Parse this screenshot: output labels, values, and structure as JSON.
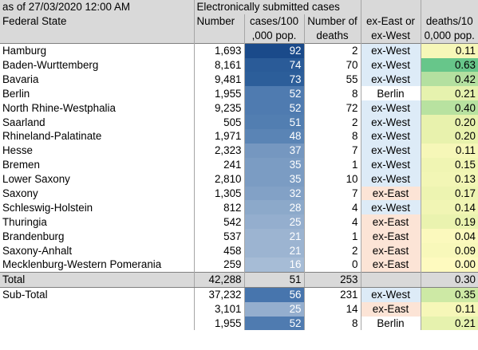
{
  "header": {
    "date_label": "as of 27/03/2020 12:00 AM",
    "group_label": "Electronically submitted cases",
    "col_state": "Federal State",
    "col_number": "Number",
    "col_cases_line1": "cases/100",
    "col_cases_line2": ",000 pop.",
    "col_deaths_line1": "Number of",
    "col_deaths_line2": "deaths",
    "col_region_line1": "ex-East or",
    "col_region_line2": "ex-West",
    "col_dr_line1": "deaths/10",
    "col_dr_line2": "0,000 pop."
  },
  "rows": [
    {
      "state": "Hamburg",
      "number": "1,693",
      "cases": "92",
      "deaths": "2",
      "region": "ex-West",
      "dr": "0.11",
      "cases_color": "#1a4a8a",
      "region_color": "#ddebf7",
      "dr_color": "#f6f7b8"
    },
    {
      "state": "Baden-Wurttemberg",
      "number": "8,161",
      "cases": "74",
      "deaths": "70",
      "region": "ex-West",
      "dr": "0.63",
      "cases_color": "#2a5b98",
      "region_color": "#ddebf7",
      "dr_color": "#67c68a"
    },
    {
      "state": "Bavaria",
      "number": "9,481",
      "cases": "73",
      "deaths": "55",
      "region": "ex-West",
      "dr": "0.42",
      "cases_color": "#2c5e9a",
      "region_color": "#ddebf7",
      "dr_color": "#b4e0a0"
    },
    {
      "state": "Berlin",
      "number": "1,955",
      "cases": "52",
      "deaths": "8",
      "region": "Berlin",
      "dr": "0.21",
      "cases_color": "#4f7bb0",
      "region_color": "#ffffff",
      "dr_color": "#e6f2ae"
    },
    {
      "state": "North Rhine-Westphalia",
      "number": "9,235",
      "cases": "52",
      "deaths": "72",
      "region": "ex-West",
      "dr": "0.40",
      "cases_color": "#4f7bb0",
      "region_color": "#ddebf7",
      "dr_color": "#b8e2a0"
    },
    {
      "state": "Saarland",
      "number": "505",
      "cases": "51",
      "deaths": "2",
      "region": "ex-West",
      "dr": "0.20",
      "cases_color": "#527eb1",
      "region_color": "#ddebf7",
      "dr_color": "#e8f2ad"
    },
    {
      "state": "Rhineland-Palatinate",
      "number": "1,971",
      "cases": "48",
      "deaths": "8",
      "region": "ex-West",
      "dr": "0.20",
      "cases_color": "#5a84b5",
      "region_color": "#ddebf7",
      "dr_color": "#e8f2ad"
    },
    {
      "state": "Hesse",
      "number": "2,323",
      "cases": "37",
      "deaths": "7",
      "region": "ex-West",
      "dr": "0.11",
      "cases_color": "#7597c0",
      "region_color": "#ddebf7",
      "dr_color": "#f6f7b8"
    },
    {
      "state": "Bremen",
      "number": "241",
      "cases": "35",
      "deaths": "1",
      "region": "ex-West",
      "dr": "0.15",
      "cases_color": "#7b9cc3",
      "region_color": "#ddebf7",
      "dr_color": "#f0f5b3"
    },
    {
      "state": "Lower Saxony",
      "number": "2,810",
      "cases": "35",
      "deaths": "10",
      "region": "ex-West",
      "dr": "0.13",
      "cases_color": "#7b9cc3",
      "region_color": "#ddebf7",
      "dr_color": "#f2f6b5"
    },
    {
      "state": "Saxony",
      "number": "1,305",
      "cases": "32",
      "deaths": "7",
      "region": "ex-East",
      "dr": "0.17",
      "cases_color": "#82a1c6",
      "region_color": "#fce4d6",
      "dr_color": "#edf4b1"
    },
    {
      "state": "Schleswig-Holstein",
      "number": "812",
      "cases": "28",
      "deaths": "4",
      "region": "ex-West",
      "dr": "0.14",
      "cases_color": "#8ca9ca",
      "region_color": "#ddebf7",
      "dr_color": "#f1f5b4"
    },
    {
      "state": "Thuringia",
      "number": "542",
      "cases": "25",
      "deaths": "4",
      "region": "ex-East",
      "dr": "0.19",
      "cases_color": "#94aece",
      "region_color": "#fce4d6",
      "dr_color": "#eaf3af"
    },
    {
      "state": "Brandenburg",
      "number": "537",
      "cases": "21",
      "deaths": "1",
      "region": "ex-East",
      "dr": "0.04",
      "cases_color": "#9cb4d1",
      "region_color": "#fce4d6",
      "dr_color": "#fbf9bd"
    },
    {
      "state": "Saxony-Anhalt",
      "number": "458",
      "cases": "21",
      "deaths": "2",
      "region": "ex-East",
      "dr": "0.09",
      "cases_color": "#9cb4d1",
      "region_color": "#fce4d6",
      "dr_color": "#f8f8ba"
    },
    {
      "state": "Mecklenburg-Western Pomerania",
      "number": "259",
      "cases": "16",
      "deaths": "0",
      "region": "ex-East",
      "dr": "0.00",
      "cases_color": "#a6bcd6",
      "region_color": "#fce4d6",
      "dr_color": "#fefabf"
    }
  ],
  "total": {
    "state": "Total",
    "number": "42,288",
    "cases": "51",
    "deaths": "253",
    "region": "",
    "dr": "0.30"
  },
  "subtotal": [
    {
      "state": "Sub-Total",
      "number": "37,232",
      "cases": "56",
      "deaths": "231",
      "region": "ex-West",
      "dr": "0.35",
      "cases_color": "#4775ad",
      "region_color": "#ddebf7",
      "dr_color": "#cde9a5"
    },
    {
      "state": "",
      "number": "3,101",
      "cases": "25",
      "deaths": "14",
      "region": "ex-East",
      "dr": "0.11",
      "cases_color": "#94aece",
      "region_color": "#fce4d6",
      "dr_color": "#f6f7b8"
    },
    {
      "state": "",
      "number": "1,955",
      "cases": "52",
      "deaths": "8",
      "region": "Berlin",
      "dr": "0.21",
      "cases_color": "#4f7bb0",
      "region_color": "#ffffff",
      "dr_color": "#e6f2ae"
    }
  ]
}
